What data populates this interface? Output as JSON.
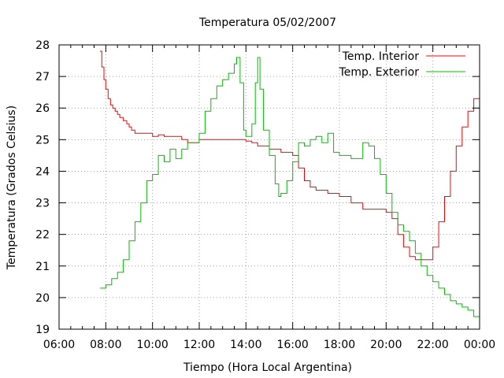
{
  "chart_data": {
    "type": "line",
    "title": "Temperatura 05/02/2007",
    "xlabel": "Tiempo (Hora Local Argentina)",
    "ylabel": "Temperatura (Grados Celsius)",
    "xlim": [
      6,
      24
    ],
    "ylim": [
      19,
      28
    ],
    "x_tick_values": [
      6,
      8,
      10,
      12,
      14,
      16,
      18,
      20,
      22,
      24
    ],
    "x_tick_labels": [
      "06:00",
      "08:00",
      "10:00",
      "12:00",
      "14:00",
      "16:00",
      "18:00",
      "20:00",
      "22:00",
      "00:00"
    ],
    "y_tick_values": [
      19,
      20,
      21,
      22,
      23,
      24,
      25,
      26,
      27,
      28
    ],
    "y_tick_labels": [
      "19",
      "20",
      "21",
      "22",
      "23",
      "24",
      "25",
      "26",
      "27",
      "28"
    ],
    "grid": true,
    "legend_position": "top-right",
    "series": [
      {
        "name": "Temp. Interior",
        "color": "#ff0000",
        "x": [
          7.75,
          7.83,
          7.92,
          8.0,
          8.1,
          8.2,
          8.3,
          8.4,
          8.5,
          8.6,
          8.75,
          8.9,
          9.0,
          9.1,
          9.25,
          9.5,
          9.75,
          10.0,
          10.25,
          10.5,
          10.75,
          11.0,
          11.25,
          11.5,
          11.75,
          12.0,
          12.5,
          13.0,
          13.5,
          14.0,
          14.25,
          14.5,
          14.75,
          15.0,
          15.5,
          15.75,
          16.0,
          16.25,
          16.5,
          16.75,
          17.0,
          17.5,
          18.0,
          18.5,
          19.0,
          19.5,
          19.75,
          20.0,
          20.25,
          20.5,
          20.75,
          21.0,
          21.25,
          21.5,
          21.75,
          22.0,
          22.25,
          22.5,
          22.75,
          23.0,
          23.25,
          23.5,
          23.75,
          24.0
        ],
        "y": [
          27.8,
          27.3,
          26.9,
          26.6,
          26.3,
          26.1,
          26.0,
          25.9,
          25.8,
          25.7,
          25.6,
          25.5,
          25.4,
          25.3,
          25.2,
          25.2,
          25.2,
          25.1,
          25.15,
          25.1,
          25.1,
          25.1,
          25.0,
          24.9,
          24.9,
          25.0,
          25.0,
          25.0,
          25.0,
          24.95,
          24.9,
          24.8,
          24.8,
          24.7,
          24.6,
          24.6,
          24.5,
          24.1,
          23.7,
          23.5,
          23.4,
          23.3,
          23.2,
          23.0,
          22.8,
          22.8,
          22.8,
          22.7,
          22.5,
          22.0,
          21.6,
          21.3,
          21.2,
          21.2,
          21.2,
          21.6,
          22.4,
          23.2,
          24.0,
          24.8,
          25.4,
          25.9,
          26.3,
          26.5
        ]
      },
      {
        "name": "Temp. Exterior",
        "color": "#00c000",
        "x": [
          7.75,
          8.0,
          8.25,
          8.5,
          8.75,
          9.0,
          9.25,
          9.5,
          9.75,
          10.0,
          10.25,
          10.5,
          10.75,
          11.0,
          11.25,
          11.5,
          11.75,
          12.0,
          12.25,
          12.5,
          12.75,
          13.0,
          13.25,
          13.5,
          13.6,
          13.75,
          13.9,
          14.0,
          14.25,
          14.4,
          14.5,
          14.6,
          14.75,
          15.0,
          15.25,
          15.4,
          15.5,
          15.75,
          16.0,
          16.25,
          16.5,
          16.75,
          17.0,
          17.25,
          17.5,
          17.75,
          18.0,
          18.5,
          19.0,
          19.25,
          19.5,
          19.75,
          20.0,
          20.25,
          20.5,
          20.75,
          21.0,
          21.25,
          21.5,
          21.75,
          22.0,
          22.25,
          22.5,
          22.75,
          23.0,
          23.25,
          23.5,
          23.75,
          24.0
        ],
        "y": [
          20.3,
          20.4,
          20.6,
          20.8,
          21.2,
          21.8,
          22.4,
          23.0,
          23.7,
          23.9,
          24.5,
          24.3,
          24.7,
          24.4,
          24.7,
          24.9,
          24.9,
          25.2,
          25.9,
          26.3,
          26.7,
          26.9,
          27.1,
          27.4,
          27.6,
          26.8,
          25.3,
          25.1,
          25.5,
          26.8,
          27.6,
          26.6,
          25.3,
          24.5,
          23.6,
          23.2,
          23.3,
          23.7,
          24.3,
          24.9,
          24.8,
          25.0,
          25.1,
          24.9,
          25.2,
          24.6,
          24.5,
          24.4,
          24.9,
          24.8,
          24.4,
          23.9,
          23.3,
          22.7,
          22.3,
          22.1,
          21.8,
          21.4,
          21.0,
          20.7,
          20.5,
          20.3,
          20.1,
          19.9,
          19.8,
          19.7,
          19.6,
          19.4,
          19.3
        ]
      }
    ]
  }
}
